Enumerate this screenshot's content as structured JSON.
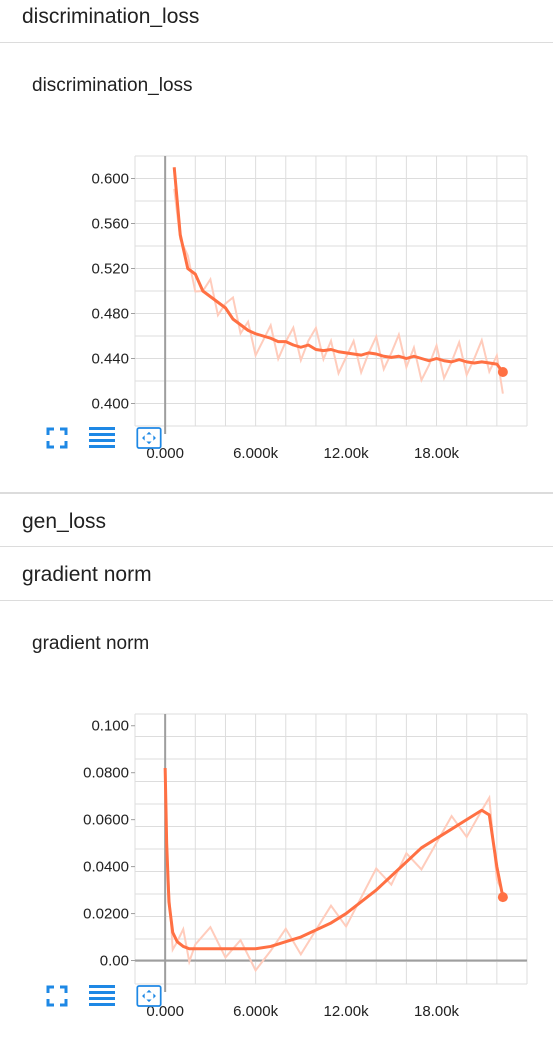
{
  "sections": {
    "discrimination_header": "discrimination_loss",
    "gen_header": "gen_loss",
    "gradient_header": "gradient norm"
  },
  "accent_color": "#ff7043",
  "tool_icons": [
    "fit-domain-icon",
    "toggle-data-icon",
    "expand-icon"
  ],
  "chart_data": [
    {
      "type": "line",
      "title": "discrimination_loss",
      "xlabel": "",
      "ylabel": "",
      "x_tick_labels": [
        "0.000",
        "6.000k",
        "12.00k",
        "18.00k"
      ],
      "x_ticks": [
        0,
        6000,
        12000,
        18000
      ],
      "y_tick_labels": [
        "0.600",
        "0.560",
        "0.520",
        "0.480",
        "0.440",
        "0.400"
      ],
      "y_ticks": [
        0.6,
        0.56,
        0.52,
        0.48,
        0.44,
        0.4
      ],
      "xlim": [
        -2000,
        24000
      ],
      "ylim": [
        0.38,
        0.62
      ],
      "grid": true,
      "smoothed_color": "#ff7043",
      "raw_color": "#ffccbc",
      "series": [
        {
          "x": [
            600,
            1000,
            1500,
            2000,
            2500,
            3000,
            3500,
            4000,
            4500,
            5000,
            5500,
            6000,
            6500,
            7000,
            7500,
            8000,
            8500,
            9000,
            9500,
            10000,
            10500,
            11000,
            11500,
            12000,
            12500,
            13000,
            13500,
            14000,
            14500,
            15000,
            15500,
            16000,
            16500,
            17000,
            17500,
            18000,
            18500,
            19000,
            19500,
            20000,
            20500,
            21000,
            21500,
            22000,
            22400
          ],
          "values": [
            0.61,
            0.55,
            0.52,
            0.515,
            0.5,
            0.495,
            0.49,
            0.485,
            0.475,
            0.47,
            0.465,
            0.462,
            0.46,
            0.458,
            0.455,
            0.455,
            0.452,
            0.45,
            0.452,
            0.448,
            0.447,
            0.448,
            0.446,
            0.445,
            0.444,
            0.443,
            0.445,
            0.444,
            0.442,
            0.441,
            0.442,
            0.44,
            0.442,
            0.44,
            0.438,
            0.44,
            0.438,
            0.437,
            0.439,
            0.437,
            0.436,
            0.437,
            0.436,
            0.435,
            0.428
          ]
        }
      ]
    },
    {
      "type": "line",
      "title": "gradient norm",
      "xlabel": "",
      "ylabel": "",
      "x_tick_labels": [
        "0.000",
        "6.000k",
        "12.00k",
        "18.00k"
      ],
      "x_ticks": [
        0,
        6000,
        12000,
        18000
      ],
      "y_tick_labels": [
        "0.100",
        "0.0800",
        "0.0600",
        "0.0400",
        "0.0200",
        "0.00"
      ],
      "y_ticks": [
        0.1,
        0.08,
        0.06,
        0.04,
        0.02,
        0
      ],
      "xlim": [
        -2000,
        24000
      ],
      "ylim": [
        -0.01,
        0.105
      ],
      "grid": true,
      "smoothed_color": "#ff7043",
      "raw_color": "#ffccbc",
      "series": [
        {
          "x": [
            0,
            100,
            250,
            500,
            800,
            1200,
            1600,
            2000,
            3000,
            4000,
            5000,
            6000,
            7000,
            8000,
            9000,
            10000,
            11000,
            12000,
            13000,
            14000,
            15000,
            16000,
            17000,
            18000,
            19000,
            20000,
            21000,
            21500,
            22000,
            22400
          ],
          "values": [
            0.082,
            0.05,
            0.025,
            0.012,
            0.008,
            0.006,
            0.005,
            0.005,
            0.005,
            0.005,
            0.005,
            0.005,
            0.006,
            0.008,
            0.01,
            0.013,
            0.016,
            0.02,
            0.025,
            0.03,
            0.036,
            0.042,
            0.048,
            0.052,
            0.056,
            0.06,
            0.064,
            0.062,
            0.04,
            0.027
          ]
        }
      ]
    }
  ]
}
